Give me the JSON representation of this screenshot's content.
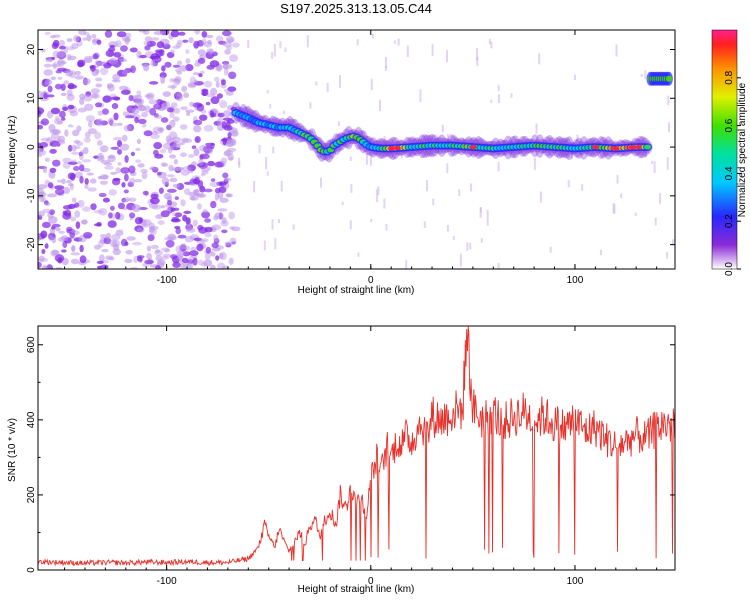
{
  "title": "S197.2025.313.13.05.C44",
  "chart_data": [
    {
      "type": "heatmap",
      "name": "spectrogram",
      "xlabel": "Height of straight line (km)",
      "ylabel": "Frequency (Hz)",
      "xlim": [
        -163,
        149
      ],
      "ylim": [
        -25,
        24
      ],
      "xticks": [
        -100,
        0,
        100
      ],
      "xtick_labels": [
        "-100",
        "0",
        "100"
      ],
      "yticks": [
        -20,
        -10,
        0,
        10,
        20
      ],
      "ytick_labels": [
        "-20",
        "-10",
        "0",
        "10",
        "20"
      ],
      "colorbar": {
        "label": "Normalized spectral amplitude",
        "range": [
          0.0,
          1.0
        ],
        "ticks": [
          0.0,
          0.2,
          0.4,
          0.6,
          0.8
        ],
        "tick_labels": [
          "0.0",
          "0.2",
          "0.4",
          "0.6",
          "0.8"
        ]
      },
      "noise_region": {
        "x": [
          -163,
          -66
        ],
        "freq": [
          -25,
          24
        ],
        "amplitude": 0.15
      },
      "signal_track": {
        "x": [
          -66,
          -60,
          -55,
          -50,
          -45,
          -40,
          -35,
          -30,
          -27,
          -24,
          -22,
          -20,
          -18,
          -16,
          -14,
          -12,
          -10,
          -8,
          -6,
          -4,
          -2,
          0,
          5,
          10,
          20,
          30,
          40,
          50,
          60,
          70,
          80,
          90,
          100,
          110,
          120,
          130,
          136
        ],
        "freq": [
          7,
          6,
          5,
          4.5,
          4,
          4,
          3,
          2,
          0.8,
          -0.8,
          -1,
          -0.8,
          0.3,
          0.8,
          1.3,
          1.8,
          2,
          2.2,
          1.8,
          1.2,
          0.5,
          0,
          -0.3,
          -0.3,
          0,
          0.3,
          0.3,
          0,
          -0.3,
          0,
          0.3,
          0,
          -0.3,
          0,
          -0.3,
          0,
          0
        ],
        "amplitude": [
          0.25,
          0.4,
          0.3,
          0.35,
          0.3,
          0.4,
          0.45,
          0.7,
          0.55,
          0.6,
          0.65,
          0.55,
          0.5,
          0.5,
          0.55,
          0.6,
          0.6,
          0.65,
          0.55,
          0.5,
          0.45,
          0.4,
          0.6,
          0.95,
          0.55,
          0.5,
          0.55,
          0.65,
          0.5,
          0.45,
          0.5,
          0.55,
          0.45,
          0.6,
          0.95,
          0.95,
          0.7
        ]
      },
      "secondary_track": {
        "x": [
          137,
          146
        ],
        "freq": 14,
        "amplitude": 0.6
      }
    },
    {
      "type": "line",
      "name": "snr",
      "xlabel": "Height of straight line (km)",
      "ylabel": "SNR (10 * v/v)",
      "xlim": [
        -163,
        149
      ],
      "ylim": [
        0,
        650
      ],
      "xticks": [
        -100,
        0,
        100
      ],
      "xtick_labels": [
        "-100",
        "0",
        "100"
      ],
      "yticks": [
        0,
        200,
        400,
        600
      ],
      "ytick_labels": [
        "0",
        "200",
        "400",
        "600"
      ],
      "color": "#e8302a",
      "series": [
        {
          "name": "SNR",
          "x": [
            -163,
            -150,
            -140,
            -130,
            -120,
            -110,
            -100,
            -90,
            -80,
            -70,
            -65,
            -60,
            -55,
            -52,
            -50,
            -47,
            -45,
            -42,
            -40,
            -37,
            -35,
            -32,
            -30,
            -27,
            -25,
            -22,
            -20,
            -17,
            -15,
            -12,
            -10,
            -7,
            -5,
            -2,
            0,
            3,
            5,
            8,
            10,
            13,
            15,
            18,
            20,
            23,
            25,
            28,
            30,
            35,
            40,
            45,
            47,
            50,
            55,
            60,
            65,
            70,
            75,
            80,
            85,
            90,
            95,
            100,
            105,
            110,
            115,
            120,
            125,
            130,
            135,
            140,
            145,
            149
          ],
          "y": [
            22,
            20,
            18,
            20,
            19,
            21,
            20,
            22,
            20,
            20,
            25,
            30,
            60,
            120,
            90,
            60,
            110,
            70,
            50,
            80,
            100,
            70,
            120,
            130,
            90,
            140,
            160,
            120,
            200,
            160,
            230,
            180,
            200,
            150,
            240,
            300,
            260,
            330,
            300,
            350,
            330,
            360,
            340,
            380,
            390,
            360,
            410,
            400,
            420,
            430,
            640,
            430,
            400,
            420,
            390,
            410,
            420,
            400,
            410,
            390,
            380,
            400,
            370,
            380,
            350,
            330,
            340,
            360,
            350,
            380,
            390,
            380
          ]
        }
      ]
    }
  ]
}
